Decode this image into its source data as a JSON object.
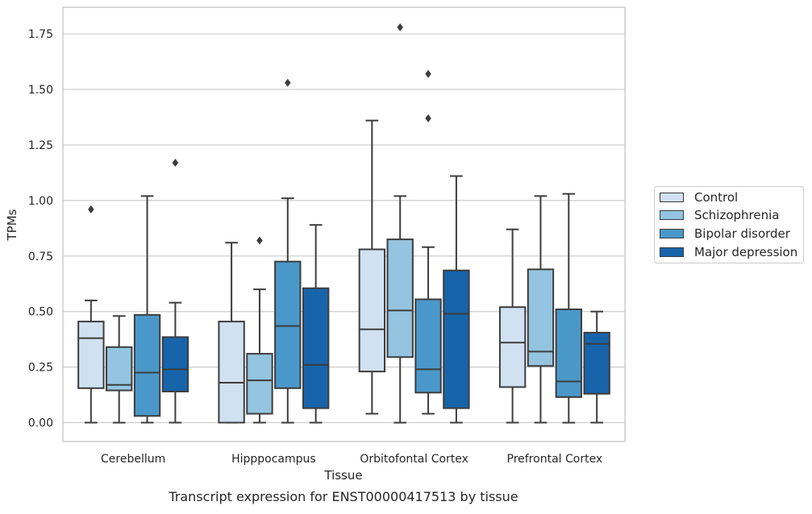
{
  "chart_data": {
    "type": "box",
    "title": "Transcript expression for ENST00000417513 by tissue",
    "xlabel": "Tissue",
    "ylabel": "TPMs",
    "ylim": [
      -0.085,
      1.87
    ],
    "yticks": [
      "0.00",
      "0.25",
      "0.50",
      "0.75",
      "1.00",
      "1.25",
      "1.50",
      "1.75"
    ],
    "grid": "horizontal",
    "legend_position": "right",
    "categories": [
      "Cerebellum",
      "Hipppocampus",
      "Orbitofontal Cortex",
      "Prefrontal Cortex"
    ],
    "series": [
      {
        "name": "Control",
        "color": "#d0e1f2",
        "boxes": [
          {
            "whisker_low": 0.0,
            "q1": 0.155,
            "median": 0.38,
            "q3": 0.455,
            "whisker_high": 0.55,
            "outliers": [
              0.96
            ]
          },
          {
            "whisker_low": 0.0,
            "q1": 0.0,
            "median": 0.18,
            "q3": 0.455,
            "whisker_high": 0.81,
            "outliers": []
          },
          {
            "whisker_low": 0.04,
            "q1": 0.23,
            "median": 0.42,
            "q3": 0.78,
            "whisker_high": 1.36,
            "outliers": []
          },
          {
            "whisker_low": 0.0,
            "q1": 0.16,
            "median": 0.36,
            "q3": 0.52,
            "whisker_high": 0.87,
            "outliers": []
          }
        ]
      },
      {
        "name": "Schizophrenia",
        "color": "#94c4df",
        "boxes": [
          {
            "whisker_low": 0.0,
            "q1": 0.145,
            "median": 0.17,
            "q3": 0.34,
            "whisker_high": 0.48,
            "outliers": []
          },
          {
            "whisker_low": 0.0,
            "q1": 0.04,
            "median": 0.19,
            "q3": 0.31,
            "whisker_high": 0.6,
            "outliers": [
              0.82
            ]
          },
          {
            "whisker_low": 0.0,
            "q1": 0.295,
            "median": 0.505,
            "q3": 0.825,
            "whisker_high": 1.02,
            "outliers": [
              1.78
            ]
          },
          {
            "whisker_low": 0.0,
            "q1": 0.255,
            "median": 0.32,
            "q3": 0.69,
            "whisker_high": 1.02,
            "outliers": []
          }
        ]
      },
      {
        "name": "Bipolar disorder",
        "color": "#4a98c9",
        "boxes": [
          {
            "whisker_low": 0.0,
            "q1": 0.03,
            "median": 0.225,
            "q3": 0.485,
            "whisker_high": 1.02,
            "outliers": []
          },
          {
            "whisker_low": 0.0,
            "q1": 0.155,
            "median": 0.435,
            "q3": 0.725,
            "whisker_high": 1.01,
            "outliers": [
              1.53
            ]
          },
          {
            "whisker_low": 0.04,
            "q1": 0.135,
            "median": 0.24,
            "q3": 0.555,
            "whisker_high": 0.79,
            "outliers": [
              1.57,
              1.37
            ]
          },
          {
            "whisker_low": 0.0,
            "q1": 0.115,
            "median": 0.185,
            "q3": 0.51,
            "whisker_high": 1.03,
            "outliers": []
          }
        ]
      },
      {
        "name": "Major depression",
        "color": "#1764ab",
        "boxes": [
          {
            "whisker_low": 0.0,
            "q1": 0.14,
            "median": 0.24,
            "q3": 0.385,
            "whisker_high": 0.54,
            "outliers": [
              1.17
            ]
          },
          {
            "whisker_low": 0.0,
            "q1": 0.065,
            "median": 0.26,
            "q3": 0.605,
            "whisker_high": 0.89,
            "outliers": []
          },
          {
            "whisker_low": 0.0,
            "q1": 0.065,
            "median": 0.49,
            "q3": 0.685,
            "whisker_high": 1.11,
            "outliers": []
          },
          {
            "whisker_low": 0.0,
            "q1": 0.13,
            "median": 0.355,
            "q3": 0.405,
            "whisker_high": 0.5,
            "outliers": []
          }
        ]
      }
    ]
  }
}
